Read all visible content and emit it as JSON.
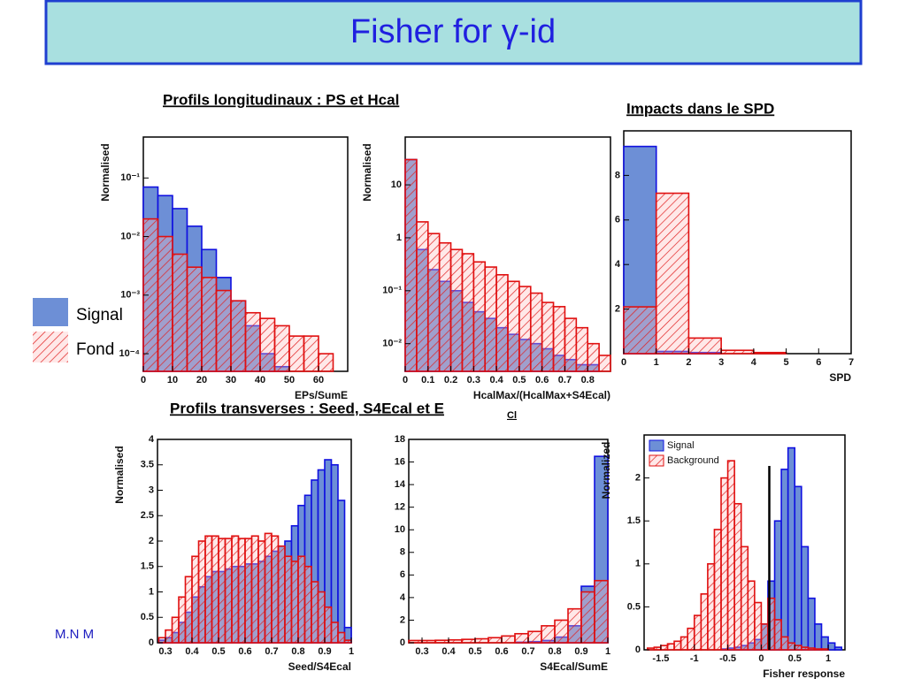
{
  "title": "Fisher for γ-id",
  "headings": [
    "Profils longitudinaux : PS et Hcal",
    "Impacts dans le SPD",
    "Profils transverses : Seed, S4Ecal et E"
  ],
  "heading_subscript": "Cl",
  "legend": [
    "Signal",
    "Fond"
  ],
  "footer": "M.N M",
  "chart_data": [
    {
      "type": "histogram",
      "xlabel": "EPs/SumE",
      "ylabel": "Normalised",
      "log": true,
      "bins": [
        0,
        5,
        10,
        15,
        20,
        25,
        30,
        35,
        40,
        45,
        50,
        55,
        60,
        65,
        70
      ],
      "series": [
        {
          "color": "#1010e0",
          "values": [
            0.07,
            0.05,
            0.03,
            0.015,
            0.006,
            0.002,
            0.0008,
            0.0003,
            0.0001,
            6e-05,
            null,
            null,
            null,
            null
          ]
        },
        {
          "color": "#e01010",
          "values": [
            0.02,
            0.01,
            0.005,
            0.003,
            0.002,
            0.0012,
            0.0008,
            0.0005,
            0.0004,
            0.0003,
            0.0002,
            0.0002,
            0.0001,
            null
          ]
        }
      ],
      "xlim": [
        0,
        70
      ],
      "ylim": [
        5e-05,
        0.5
      ],
      "xticks": [
        0,
        10,
        20,
        30,
        40,
        50,
        60
      ],
      "yticks": [
        {
          "value": 0.0001,
          "label": "10⁻⁴"
        },
        {
          "value": 0.001,
          "label": "10⁻³"
        },
        {
          "value": 0.01,
          "label": "10⁻²"
        },
        {
          "value": 0.1,
          "label": "10⁻¹"
        }
      ]
    },
    {
      "type": "histogram",
      "xlabel": "HcalMax/(HcalMax+S4Ecal)",
      "ylabel": "Normalised",
      "log": true,
      "bins": [
        0,
        0.05,
        0.1,
        0.15,
        0.2,
        0.25,
        0.3,
        0.35,
        0.4,
        0.45,
        0.5,
        0.55,
        0.6,
        0.65,
        0.7,
        0.75,
        0.8,
        0.85,
        0.9
      ],
      "series": [
        {
          "color": "#1010e0",
          "values": [
            30,
            0.6,
            0.25,
            0.15,
            0.1,
            0.06,
            0.04,
            0.03,
            0.02,
            0.015,
            0.012,
            0.01,
            0.008,
            0.006,
            0.005,
            0.004,
            0.004,
            0.003
          ]
        },
        {
          "color": "#e01010",
          "values": [
            30,
            2,
            1.2,
            0.8,
            0.6,
            0.5,
            0.35,
            0.28,
            0.2,
            0.15,
            0.12,
            0.09,
            0.06,
            0.05,
            0.03,
            0.02,
            0.01,
            0.006
          ]
        }
      ],
      "xlim": [
        0,
        0.9
      ],
      "ylim": [
        0.003,
        80
      ],
      "xticks": [
        0,
        0.1,
        0.2,
        0.3,
        0.4,
        0.5,
        0.6,
        0.7,
        0.8
      ],
      "yticks": [
        {
          "value": 0.01,
          "label": "10⁻²"
        },
        {
          "value": 0.1,
          "label": "10⁻¹"
        },
        1,
        10
      ]
    },
    {
      "type": "histogram",
      "xlabel": "SPD",
      "log": false,
      "bins": [
        0,
        1,
        2,
        3,
        4,
        5,
        6,
        7
      ],
      "series": [
        {
          "color": "#1010e0",
          "values": [
            9.3,
            0.1,
            0.05,
            0,
            0,
            0,
            0
          ]
        },
        {
          "color": "#e01010",
          "values": [
            2.1,
            7.2,
            0.7,
            0.15,
            0.05,
            0,
            0
          ]
        }
      ],
      "xlim": [
        0,
        7
      ],
      "ylim": [
        0,
        10
      ],
      "xticks": [
        0,
        1,
        2,
        3,
        4,
        5,
        6,
        7
      ],
      "yticks": [
        2,
        4,
        6,
        8
      ]
    },
    {
      "type": "histogram",
      "xlabel": "Seed/S4Ecal",
      "ylabel": "Normalised",
      "log": false,
      "bins": [
        0.275,
        0.3,
        0.325,
        0.35,
        0.375,
        0.4,
        0.425,
        0.45,
        0.475,
        0.5,
        0.525,
        0.55,
        0.575,
        0.6,
        0.625,
        0.65,
        0.675,
        0.7,
        0.725,
        0.75,
        0.775,
        0.8,
        0.825,
        0.85,
        0.875,
        0.9,
        0.925,
        0.95,
        0.975,
        1
      ],
      "series": [
        {
          "color": "#1010e0",
          "values": [
            0.05,
            0.1,
            0.2,
            0.4,
            0.6,
            0.9,
            1.1,
            1.3,
            1.4,
            1.4,
            1.45,
            1.5,
            1.5,
            1.55,
            1.55,
            1.6,
            1.7,
            1.8,
            1.9,
            2.0,
            2.3,
            2.7,
            2.9,
            3.2,
            3.4,
            3.6,
            3.5,
            2.8,
            0.3
          ]
        },
        {
          "color": "#e01010",
          "values": [
            0.1,
            0.25,
            0.5,
            0.9,
            1.3,
            1.7,
            2.0,
            2.1,
            2.1,
            2.05,
            2.05,
            2.1,
            2.05,
            2.05,
            2.1,
            2.0,
            2.15,
            2.1,
            1.9,
            1.7,
            1.6,
            1.7,
            1.5,
            1.2,
            1.0,
            0.7,
            0.4,
            0.2,
            0.05
          ]
        }
      ],
      "xlim": [
        0.27,
        1
      ],
      "ylim": [
        0,
        4
      ],
      "xticks": [
        0.3,
        0.4,
        0.5,
        0.6,
        0.7,
        0.8,
        0.9,
        1
      ],
      "yticks": [
        0,
        0.5,
        1,
        1.5,
        2,
        2.5,
        3,
        3.5,
        4
      ]
    },
    {
      "type": "histogram",
      "xlabel": "S4Ecal/SumE",
      "log": false,
      "bins": [
        0.25,
        0.3,
        0.35,
        0.4,
        0.45,
        0.5,
        0.55,
        0.6,
        0.65,
        0.7,
        0.75,
        0.8,
        0.85,
        0.9,
        0.95,
        1
      ],
      "series": [
        {
          "color": "#1010e0",
          "values": [
            0,
            0,
            0,
            0,
            0,
            0,
            0,
            0,
            0.05,
            0.1,
            0.2,
            0.5,
            1.5,
            5,
            16.5
          ]
        },
        {
          "color": "#e01010",
          "values": [
            0.2,
            0.2,
            0.22,
            0.25,
            0.3,
            0.35,
            0.45,
            0.6,
            0.8,
            1.0,
            1.5,
            2.0,
            3.0,
            4.5,
            5.5
          ]
        }
      ],
      "xlim": [
        0.25,
        1
      ],
      "ylim": [
        0,
        18
      ],
      "xticks": [
        0.3,
        0.4,
        0.5,
        0.6,
        0.7,
        0.8,
        0.9,
        1
      ],
      "yticks": [
        0,
        2,
        4,
        6,
        8,
        10,
        12,
        14,
        16,
        18
      ]
    },
    {
      "type": "histogram",
      "xlabel": "Fisher response",
      "ylabel": "Normalized",
      "log": false,
      "bins": [
        -1.7,
        -1.6,
        -1.5,
        -1.4,
        -1.3,
        -1.2,
        -1.1,
        -1,
        -0.9,
        -0.8,
        -0.7,
        -0.6,
        -0.5,
        -0.4,
        -0.3,
        -0.2,
        -0.1,
        0,
        0.1,
        0.2,
        0.3,
        0.4,
        0.5,
        0.6,
        0.7,
        0.8,
        0.9,
        1,
        1.1,
        1.2
      ],
      "series": [
        {
          "name": "Signal",
          "color": "#1010e0",
          "values": [
            0,
            0,
            0,
            0,
            0,
            0,
            0,
            0,
            0,
            0,
            0,
            0.01,
            0.02,
            0.03,
            0.05,
            0.08,
            0.12,
            0.3,
            0.8,
            1.5,
            2.1,
            2.35,
            1.9,
            1.2,
            0.6,
            0.3,
            0.15,
            0.08,
            0.03
          ]
        },
        {
          "name": "Background",
          "color": "#e01010",
          "values": [
            0.02,
            0.03,
            0.05,
            0.07,
            0.1,
            0.15,
            0.25,
            0.4,
            0.65,
            1.0,
            1.4,
            2.0,
            2.2,
            1.7,
            1.2,
            0.8,
            0.55,
            0.3,
            0.6,
            0.35,
            0.15,
            0.08,
            0.05,
            0.03,
            0.02,
            0.01,
            0.01,
            0,
            0
          ]
        }
      ],
      "cut": 0.12,
      "xlim": [
        -1.75,
        1.25
      ],
      "ylim": [
        0,
        2.5
      ],
      "xticks": [
        -1.5,
        -1,
        -0.5,
        0,
        0.5,
        1
      ],
      "yticks": [
        0,
        0.5,
        1,
        1.5,
        2
      ]
    }
  ]
}
